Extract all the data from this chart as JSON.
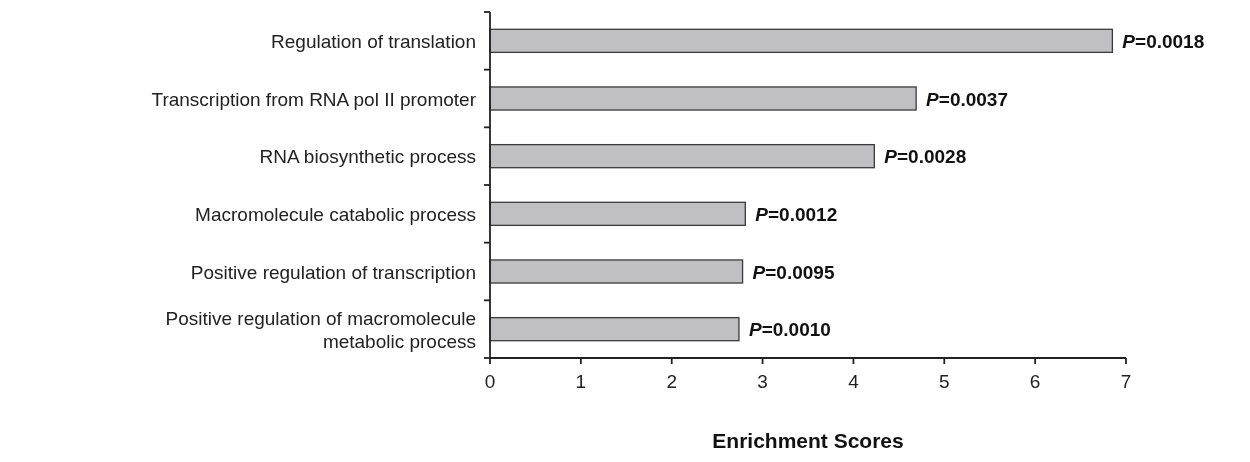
{
  "chart_data": {
    "type": "bar",
    "orientation": "horizontal",
    "xlabel": "Enrichment Scores",
    "categories": [
      "Regulation of translation",
      "Transcription from RNA pol II promoter",
      "RNA biosynthetic process",
      "Macromolecule catabolic process",
      "Positive regulation of transcription",
      "Positive regulation of macromolecule metabolic process"
    ],
    "values": [
      6.85,
      4.69,
      4.23,
      2.81,
      2.78,
      2.74
    ],
    "annotations": [
      {
        "text": "P=0.0018",
        "x": 6.85,
        "y": "Regulation of translation"
      },
      {
        "text": "P=0.0037",
        "x": 4.69,
        "y": "Transcription from RNA pol II promoter"
      },
      {
        "text": "P=0.0028",
        "x": 4.23,
        "y": "RNA biosynthetic process"
      },
      {
        "text": "P=0.0012",
        "x": 2.81,
        "y": "Macromolecule catabolic process"
      },
      {
        "text": "P=0.0095",
        "x": 2.78,
        "y": "Positive regulation of transcription"
      },
      {
        "text": "P=0.0010",
        "x": 2.74,
        "y": "Positive regulation of macromolecule metabolic process"
      }
    ],
    "color": "#c0c0c2",
    "xlim": [
      0,
      7
    ],
    "xticks": [
      0,
      1,
      2,
      3,
      4,
      5,
      6,
      7
    ],
    "grid": false
  }
}
